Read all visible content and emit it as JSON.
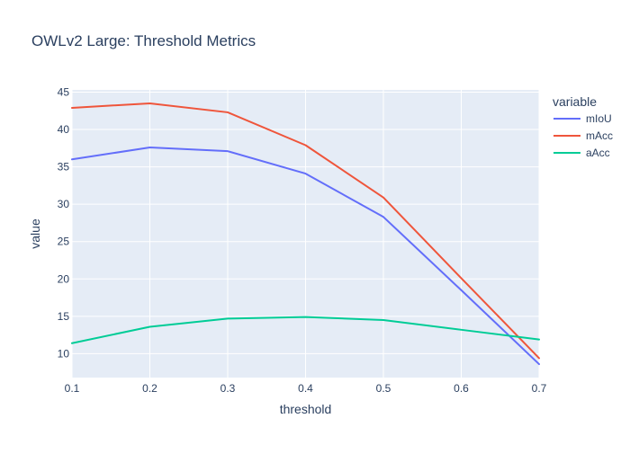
{
  "chart_data": {
    "type": "line",
    "title": "OWLv2 Large: Threshold Metrics",
    "xlabel": "threshold",
    "ylabel": "value",
    "x": [
      0.1,
      0.2,
      0.3,
      0.4,
      0.5,
      0.6,
      0.7
    ],
    "xlim": [
      0.1,
      0.7
    ],
    "ylim": [
      6.8,
      45.3
    ],
    "x_ticks": [
      0.1,
      0.2,
      0.3,
      0.4,
      0.5,
      0.6,
      0.7
    ],
    "y_ticks": [
      10,
      15,
      20,
      25,
      30,
      35,
      40,
      45
    ],
    "grid": true,
    "legend": {
      "title": "variable",
      "position": "top-right"
    },
    "series": [
      {
        "name": "mIoU",
        "color": "#636efa",
        "values": [
          36.0,
          37.6,
          37.1,
          34.1,
          28.3,
          18.5,
          8.6
        ]
      },
      {
        "name": "mAcc",
        "color": "#ef553b",
        "values": [
          42.9,
          43.5,
          42.3,
          37.9,
          30.9,
          20.1,
          9.4
        ]
      },
      {
        "name": "aAcc",
        "color": "#00cc96",
        "values": [
          11.4,
          13.6,
          14.7,
          14.9,
          14.5,
          13.2,
          11.9
        ]
      }
    ]
  }
}
